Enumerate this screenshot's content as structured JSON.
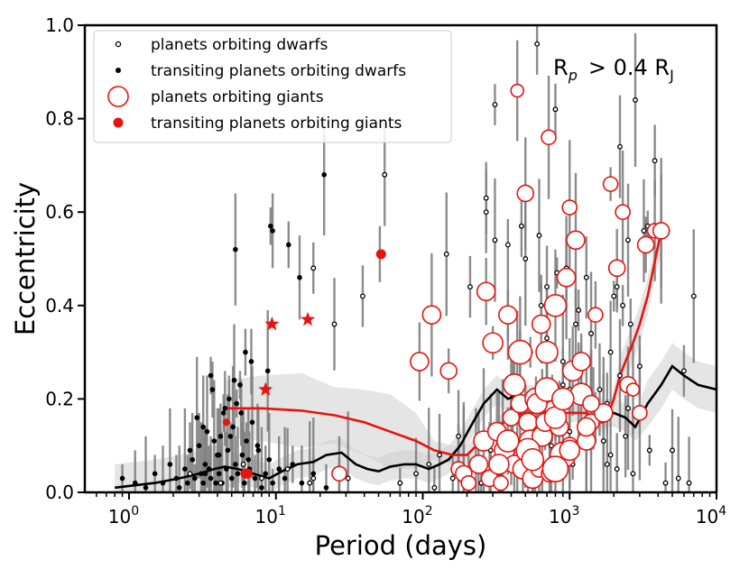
{
  "chart_data": {
    "type": "scatter",
    "xscale": "log",
    "xlim": [
      0.5,
      10000
    ],
    "ylim": [
      0.0,
      1.0
    ],
    "xlabel": "Period (days)",
    "ylabel": "Eccentricity",
    "annotation": "R",
    "annotation_sub": "p",
    "annotation_rest": "> 0.4 R",
    "annotation_sub2": "J",
    "x_ticks": [
      {
        "value": 1,
        "base": "10",
        "exp": "0"
      },
      {
        "value": 10,
        "base": "10",
        "exp": "1"
      },
      {
        "value": 100,
        "base": "10",
        "exp": "2"
      },
      {
        "value": 1000,
        "base": "10",
        "exp": "3"
      },
      {
        "value": 10000,
        "base": "10",
        "exp": "4"
      }
    ],
    "y_ticks": [
      "0.0",
      "0.2",
      "0.4",
      "0.6",
      "0.8",
      "1.0"
    ],
    "legend": [
      {
        "label": "planets orbiting dwarfs",
        "marker": "open-small-black"
      },
      {
        "label": "transiting planets orbiting dwarfs",
        "marker": "filled-small-black"
      },
      {
        "label": "planets orbiting giants",
        "marker": "open-large-red"
      },
      {
        "label": "transiting planets orbiting giants",
        "marker": "filled-red"
      }
    ],
    "colors": {
      "dwarf": "#000000",
      "giant": "#e8130f",
      "errorbar": "#808080",
      "band": "#d0d0d0"
    },
    "series": [
      {
        "name": "transiting planets orbiting dwarfs",
        "x": [
          0.9,
          1.1,
          1.3,
          1.5,
          1.7,
          1.9,
          2.1,
          2.2,
          2.4,
          2.5,
          2.7,
          2.8,
          3.0,
          3.1,
          3.2,
          3.3,
          3.4,
          3.5,
          3.6,
          3.8,
          3.9,
          4.0,
          4.1,
          4.2,
          4.3,
          4.4,
          4.6,
          4.7,
          4.8,
          5.0,
          5.1,
          5.3,
          5.5,
          5.7,
          5.9,
          6.1,
          6.3,
          6.6,
          6.9,
          7.2,
          7.6,
          8.0,
          8.5,
          9.0,
          9.5,
          10.5,
          11.5,
          13,
          15,
          18,
          22,
          27,
          2.9,
          3.7,
          4.1,
          5.4,
          6.8,
          3.2,
          3.6,
          4.5,
          5.2,
          6.2,
          7.5,
          8.8,
          2.6,
          3.3,
          4.9,
          5.8,
          6.5,
          9.2,
          9.5,
          5.3,
          12.2,
          14.5,
          21.3,
          51
        ],
        "y": [
          0.03,
          0.02,
          0.01,
          0.04,
          0.02,
          0.06,
          0.03,
          0.01,
          0.05,
          0.02,
          0.07,
          0.03,
          0.1,
          0.04,
          0.02,
          0.06,
          0.13,
          0.05,
          0.03,
          0.11,
          0.02,
          0.08,
          0.04,
          0.12,
          0.02,
          0.17,
          0.05,
          0.09,
          0.2,
          0.03,
          0.14,
          0.06,
          0.04,
          0.23,
          0.08,
          0.02,
          0.11,
          0.05,
          0.15,
          0.03,
          0.09,
          0.01,
          0.04,
          0.07,
          0.02,
          0.05,
          0.03,
          0.06,
          0.02,
          0.04,
          0.01,
          0.03,
          0.16,
          0.22,
          0.08,
          0.19,
          0.28,
          0.14,
          0.25,
          0.18,
          0.24,
          0.3,
          0.1,
          0.26,
          0.09,
          0.04,
          0.12,
          0.17,
          0.07,
          0.57,
          0.56,
          0.52,
          0.53,
          0.46,
          0.68,
          0.51
        ]
      },
      {
        "name": "planets orbiting dwarfs",
        "x": [
          2.6,
          4.2,
          6,
          8,
          12,
          17,
          18,
          25,
          31,
          39,
          55,
          70,
          90,
          110,
          120,
          130,
          145,
          160,
          175,
          190,
          210,
          230,
          250,
          270,
          290,
          310,
          330,
          350,
          380,
          410,
          440,
          470,
          500,
          540,
          580,
          620,
          660,
          700,
          750,
          800,
          850,
          900,
          950,
          1000,
          1050,
          1100,
          1150,
          1200,
          1300,
          1400,
          1500,
          1600,
          1700,
          1800,
          1900,
          2000,
          2100,
          2200,
          2300,
          2400,
          2500,
          2600,
          2700,
          2800,
          3000,
          3200,
          3500,
          3800,
          4200,
          4500,
          5000,
          5500,
          6000,
          6500,
          7000,
          600,
          2200,
          3400,
          1900,
          2500,
          18,
          270,
          310,
          380,
          440,
          500,
          640,
          700,
          820,
          900,
          1000,
          1150,
          1450,
          1800,
          2100
        ],
        "y": [
          0.04,
          0.02,
          0.06,
          0.03,
          0.05,
          0.02,
          0.48,
          0.36,
          0.03,
          0.42,
          0.68,
          0.02,
          0.04,
          0.06,
          0.01,
          0.08,
          0.51,
          0.03,
          0.12,
          0.05,
          0.44,
          0.07,
          0.02,
          0.63,
          0.09,
          0.83,
          0.04,
          0.11,
          0.53,
          0.18,
          0.06,
          0.57,
          0.12,
          0.3,
          0.08,
          0.55,
          0.2,
          0.44,
          0.1,
          0.82,
          0.14,
          0.28,
          0.48,
          0.22,
          0.06,
          0.36,
          0.2,
          0.27,
          0.46,
          0.34,
          0.16,
          0.22,
          0.11,
          0.19,
          0.3,
          0.42,
          0.05,
          0.25,
          0.4,
          0.12,
          0.18,
          0.36,
          0.04,
          0.84,
          0.27,
          0.56,
          0.09,
          0.71,
          0.56,
          0.02,
          0.09,
          0.03,
          0.26,
          0.02,
          0.42,
          0.96,
          0.74,
          0.57,
          0.08,
          0.54,
          0.03,
          0.6,
          0.54,
          0.38,
          0.29,
          0.5,
          0.4,
          0.33,
          0.47,
          0.23,
          0.13,
          0.39,
          0.18,
          0.06,
          0.44
        ]
      },
      {
        "name": "planets orbiting giants",
        "x": [
          27,
          95,
          115,
          150,
          175,
          190,
          205,
          240,
          260,
          270,
          285,
          300,
          320,
          340,
          360,
          380,
          400,
          420,
          440,
          460,
          480,
          500,
          520,
          540,
          560,
          590,
          620,
          650,
          680,
          700,
          730,
          760,
          800,
          850,
          900,
          950,
          1000,
          1050,
          1100,
          1200,
          1300,
          1400,
          1500,
          1700,
          1900,
          2100,
          2300,
          2500,
          2700,
          3000,
          3300,
          3800,
          4200,
          420,
          520,
          600,
          640,
          720,
          800,
          900,
          1000,
          1200,
          1400,
          330,
          380,
          460,
          560,
          700,
          800,
          900,
          1000,
          1300
        ],
        "y": [
          0.04,
          0.28,
          0.38,
          0.26,
          0.05,
          0.04,
          0.02,
          0.06,
          0.11,
          0.43,
          0.03,
          0.32,
          0.13,
          0.02,
          0.09,
          0.38,
          0.16,
          0.06,
          0.86,
          0.19,
          0.05,
          0.64,
          0.15,
          0.11,
          0.03,
          0.2,
          0.05,
          0.12,
          0.15,
          0.3,
          0.04,
          0.18,
          0.4,
          0.14,
          0.2,
          0.46,
          0.1,
          0.26,
          0.54,
          0.21,
          0.11,
          0.15,
          0.38,
          0.17,
          0.66,
          0.48,
          0.6,
          0.23,
          0.22,
          0.17,
          0.53,
          0.56,
          0.56,
          0.23,
          0.09,
          0.19,
          0.36,
          0.76,
          0.16,
          0.08,
          0.61,
          0.28,
          0.19,
          0.06,
          0.11,
          0.3,
          0.07,
          0.22,
          0.05,
          0.2,
          0.09,
          0.14
        ],
        "sizes": [
          8,
          10,
          10,
          9,
          8,
          9,
          8,
          10,
          11,
          10,
          9,
          11,
          10,
          8,
          11,
          10,
          9,
          10,
          7,
          10,
          11,
          9,
          10,
          12,
          11,
          12,
          9,
          11,
          10,
          12,
          9,
          8,
          12,
          10,
          11,
          10,
          9,
          11,
          10,
          12,
          10,
          9,
          8,
          10,
          8,
          9,
          8,
          9,
          7,
          8,
          9,
          8,
          9,
          12,
          13,
          11,
          10,
          8,
          12,
          14,
          8,
          10,
          9,
          11,
          12,
          13,
          12,
          13,
          14,
          12,
          11,
          10
        ]
      },
      {
        "name": "transiting planets orbiting giants",
        "x": [
          4.6,
          6.2,
          6.4,
          9.4,
          16.5,
          8.5,
          52
        ],
        "y": [
          0.15,
          0.04,
          0.04,
          0.36,
          0.37,
          0.22,
          0.51
        ],
        "markers": [
          "circle",
          "circle",
          "circle",
          "star",
          "star",
          "star",
          "circle"
        ]
      },
      {
        "name": "dwarf trend (black line)",
        "x": [
          0.8,
          1.5,
          2.2,
          3,
          3.8,
          4.5,
          5.5,
          7,
          9,
          11,
          14,
          18,
          22,
          28,
          35,
          42,
          50,
          60,
          75,
          90,
          110,
          130,
          150,
          180,
          220,
          260,
          320,
          380,
          450,
          520,
          600,
          700,
          850,
          1000,
          1200,
          1400,
          1700,
          2000,
          2400,
          2800,
          3400,
          4200,
          5000,
          6000,
          7500,
          10000
        ],
        "y": [
          0.01,
          0.02,
          0.03,
          0.04,
          0.05,
          0.055,
          0.05,
          0.04,
          0.03,
          0.045,
          0.06,
          0.065,
          0.08,
          0.085,
          0.06,
          0.05,
          0.045,
          0.055,
          0.06,
          0.06,
          0.05,
          0.06,
          0.07,
          0.1,
          0.15,
          0.19,
          0.22,
          0.2,
          0.21,
          0.2,
          0.2,
          0.19,
          0.19,
          0.2,
          0.19,
          0.18,
          0.17,
          0.17,
          0.16,
          0.14,
          0.19,
          0.23,
          0.27,
          0.25,
          0.23,
          0.22
        ]
      },
      {
        "name": "giant trend (red line)",
        "x": [
          4.6,
          8,
          15,
          25,
          40,
          60,
          90,
          120,
          160,
          200,
          250,
          320,
          400,
          500,
          600,
          700,
          800,
          900,
          1000,
          1100,
          1200,
          1300,
          1400,
          1500,
          1600,
          1700,
          1800,
          2000,
          2200,
          2400,
          2700,
          3000,
          3400,
          4200
        ],
        "y": [
          0.18,
          0.18,
          0.175,
          0.165,
          0.15,
          0.13,
          0.11,
          0.09,
          0.08,
          0.08,
          0.11,
          0.14,
          0.16,
          0.17,
          0.17,
          0.17,
          0.17,
          0.17,
          0.17,
          0.17,
          0.17,
          0.17,
          0.165,
          0.16,
          0.15,
          0.15,
          0.16,
          0.2,
          0.25,
          0.28,
          0.32,
          0.36,
          0.42,
          0.56
        ]
      }
    ]
  }
}
